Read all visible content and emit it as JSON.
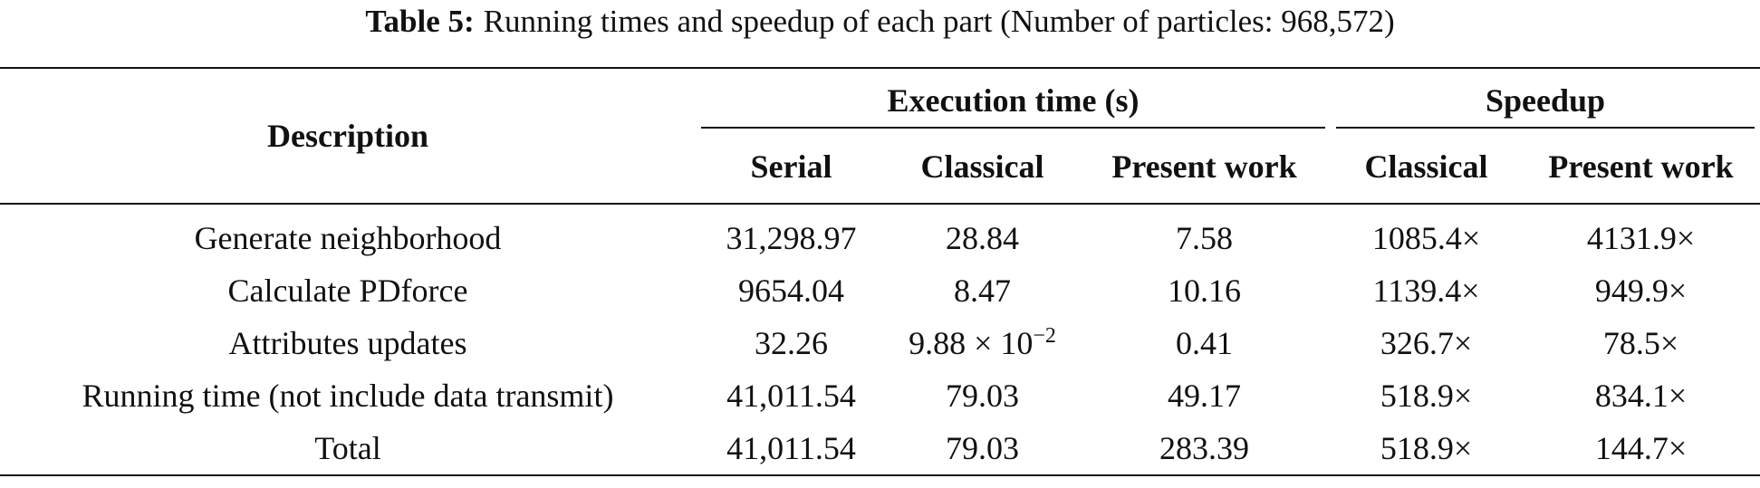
{
  "caption": {
    "label": "Table 5:",
    "text": "Running times and speedup of each part (Number of particles: 968,572)"
  },
  "table": {
    "header": {
      "description": "Description",
      "groups": [
        "Execution time (s)",
        "Speedup"
      ],
      "columns": [
        "Serial",
        "Classical",
        "Present work",
        "Classical",
        "Present work"
      ]
    },
    "rows": [
      [
        "Generate neighborhood",
        "31,298.97",
        "28.84",
        "7.58",
        "1085.4×",
        "4131.9×"
      ],
      [
        "Calculate PDforce",
        "9654.04",
        "8.47",
        "10.16",
        "1139.4×",
        "949.9×"
      ],
      [
        "Attributes updates",
        "32.26",
        {
          "mantissa": "9.88 × 10",
          "exponent": "−2"
        },
        "0.41",
        "326.7×",
        "78.5×"
      ],
      [
        "Running time (not include data transmit)",
        "41,011.54",
        "79.03",
        "49.17",
        "518.9×",
        "834.1×"
      ],
      [
        "Total",
        "41,011.54",
        "79.03",
        "283.39",
        "518.9×",
        "144.7×"
      ]
    ]
  }
}
